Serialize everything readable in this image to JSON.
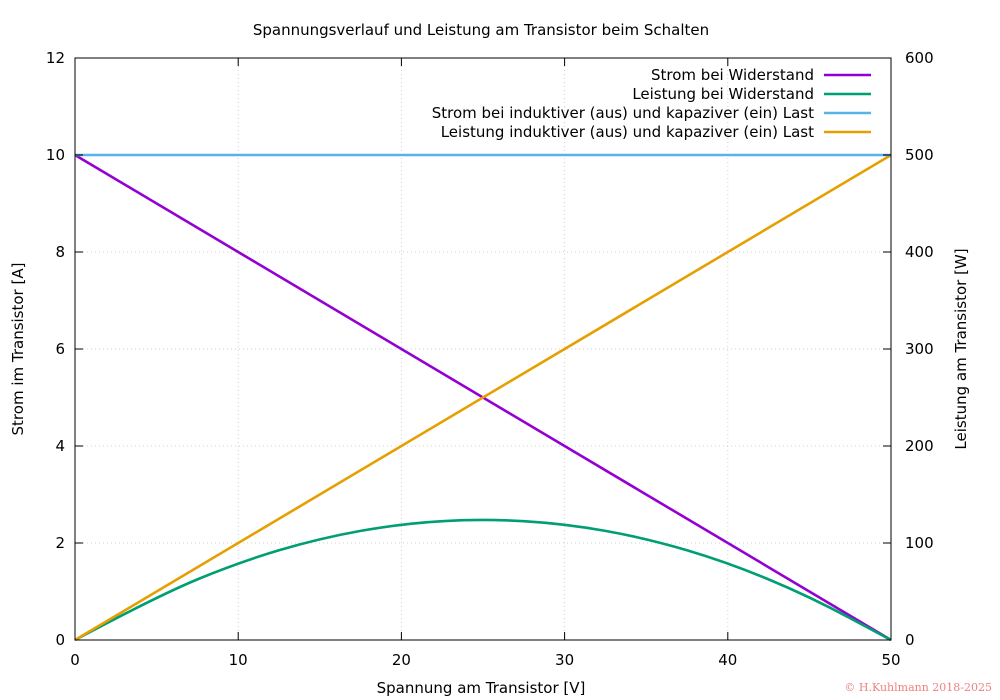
{
  "chart_data": {
    "type": "line",
    "title": "Spannungsverlauf und Leistung am Transistor beim Schalten",
    "xlabel": "Spannung am Transistor [V]",
    "ylabel": "Strom im Transistor [A]",
    "y2label": "Leistung am Transistor [W]",
    "xlim": [
      0,
      50
    ],
    "ylim": [
      0,
      12
    ],
    "y2lim": [
      0,
      600
    ],
    "xticks": [
      0,
      10,
      20,
      30,
      40,
      50
    ],
    "yticks": [
      0,
      2,
      4,
      6,
      8,
      10,
      12
    ],
    "y2ticks": [
      0,
      100,
      200,
      300,
      400,
      500,
      600
    ],
    "grid": true,
    "legend_position": "top-right",
    "series": [
      {
        "name": "Strom bei Widerstand",
        "axis": "y",
        "color": "#9400d3",
        "x": [
          0,
          50
        ],
        "y": [
          10,
          0
        ]
      },
      {
        "name": "Leistung bei Widerstand",
        "axis": "y2",
        "color": "#009e73",
        "x": [
          0,
          5,
          10,
          15,
          20,
          25,
          30,
          35,
          40,
          45,
          50
        ],
        "y": [
          0,
          45,
          80,
          105,
          120,
          125,
          120,
          105,
          80,
          45,
          0
        ]
      },
      {
        "name": "Strom bei induktiver (aus) und kapaziver (ein) Last",
        "axis": "y",
        "color": "#56b4e9",
        "x": [
          0,
          50
        ],
        "y": [
          10,
          10
        ]
      },
      {
        "name": "Leistung induktiver (aus) und kapaziver (ein) Last",
        "axis": "y2",
        "color": "#e69f00",
        "x": [
          0,
          50
        ],
        "y": [
          0,
          500
        ]
      }
    ]
  },
  "copyright": "© H.Kuhlmann 2018-2025"
}
